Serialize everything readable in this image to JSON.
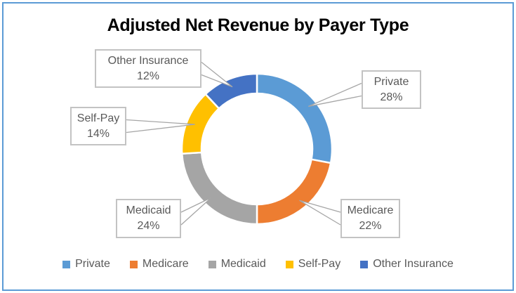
{
  "frame": {
    "border_color": "#5B9BD5"
  },
  "chart_data": {
    "type": "pie",
    "subtype": "doughnut",
    "title": "Adjusted Net Revenue by Payer Type",
    "categories": [
      "Private",
      "Medicare",
      "Medicaid",
      "Self-Pay",
      "Other Insurance"
    ],
    "values": [
      28,
      22,
      24,
      14,
      12
    ],
    "unit": "%",
    "colors": [
      "#5B9BD5",
      "#ED7D31",
      "#A5A5A5",
      "#FFC000",
      "#4472C4"
    ],
    "data_label_format": "{category} {value}%",
    "start_angle_deg": 0,
    "direction": "clockwise",
    "hole_ratio": 0.74,
    "legend_position": "bottom",
    "label_text_color": "#595959",
    "label_border_color": "#C3C3C3",
    "leader_line_color": "#A6A6A6",
    "title_color": "#000000"
  }
}
